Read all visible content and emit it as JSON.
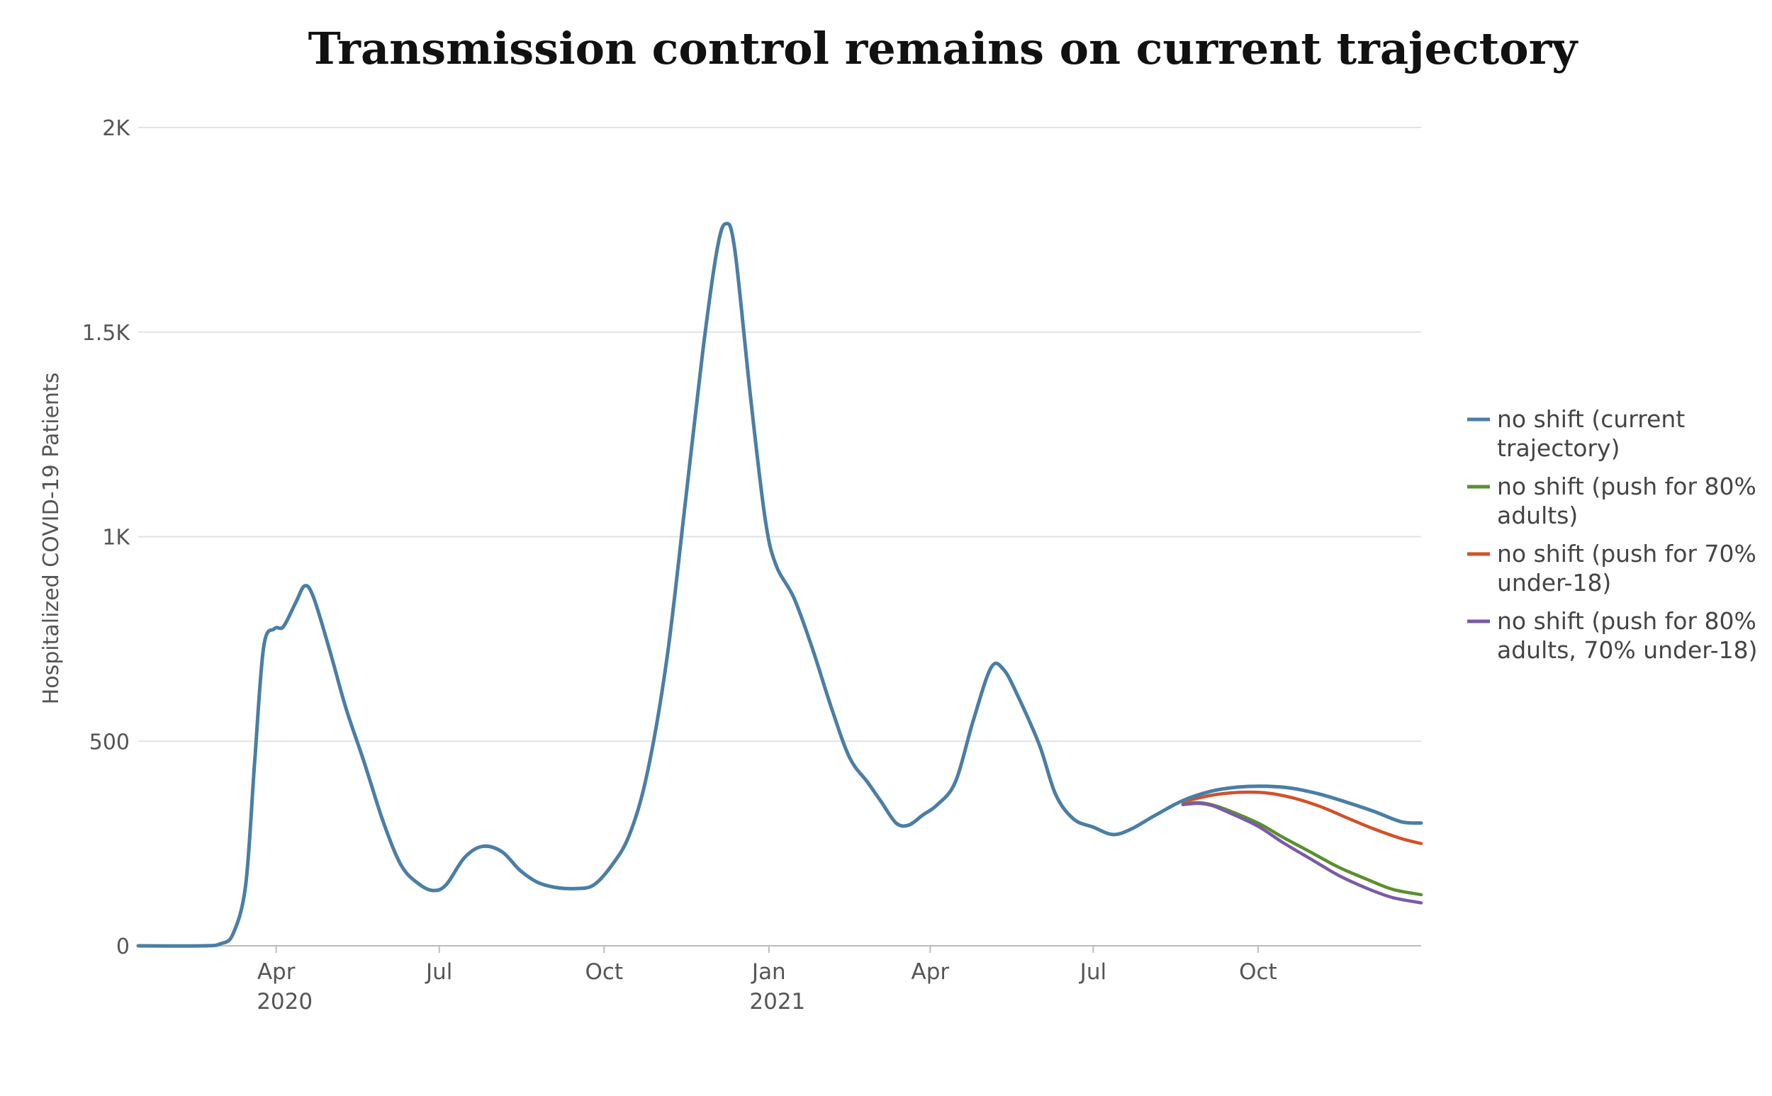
{
  "chart_data": {
    "type": "line",
    "title": "Transmission control remains on current trajectory",
    "ylabel": "Hospitalized COVID-19 Patients",
    "xlabel": "",
    "ylim": [
      0,
      2000
    ],
    "xlim": [
      "2020-01-15",
      "2021-12-31"
    ],
    "y_ticks": [
      {
        "value": 0,
        "label": "0"
      },
      {
        "value": 500,
        "label": "500"
      },
      {
        "value": 1000,
        "label": "1K"
      },
      {
        "value": 1500,
        "label": "1.5K"
      },
      {
        "value": 2000,
        "label": "2K"
      }
    ],
    "x_ticks": [
      {
        "date": "2020-04-01",
        "label": "Apr",
        "year": "2020"
      },
      {
        "date": "2020-07-01",
        "label": "Jul",
        "year": ""
      },
      {
        "date": "2020-10-01",
        "label": "Oct",
        "year": ""
      },
      {
        "date": "2021-01-01",
        "label": "Jan",
        "year": "2021"
      },
      {
        "date": "2021-04-01",
        "label": "Apr",
        "year": ""
      },
      {
        "date": "2021-07-01",
        "label": "Jul",
        "year": ""
      },
      {
        "date": "2021-10-01",
        "label": "Oct",
        "year": ""
      }
    ],
    "grid": true,
    "legend_position": "right",
    "series": [
      {
        "name": "no shift (current trajectory)",
        "color": "#4a7ea5",
        "points": [
          [
            "2020-01-15",
            0
          ],
          [
            "2020-02-20",
            0
          ],
          [
            "2020-03-01",
            5
          ],
          [
            "2020-03-08",
            30
          ],
          [
            "2020-03-15",
            150
          ],
          [
            "2020-03-20",
            450
          ],
          [
            "2020-03-25",
            730
          ],
          [
            "2020-03-31",
            775
          ],
          [
            "2020-04-05",
            780
          ],
          [
            "2020-04-12",
            840
          ],
          [
            "2020-04-17",
            880
          ],
          [
            "2020-04-22",
            850
          ],
          [
            "2020-05-01",
            720
          ],
          [
            "2020-05-10",
            580
          ],
          [
            "2020-05-20",
            450
          ],
          [
            "2020-05-31",
            300
          ],
          [
            "2020-06-10",
            195
          ],
          [
            "2020-06-20",
            150
          ],
          [
            "2020-06-28",
            135
          ],
          [
            "2020-07-05",
            150
          ],
          [
            "2020-07-15",
            215
          ],
          [
            "2020-07-25",
            243
          ],
          [
            "2020-08-05",
            230
          ],
          [
            "2020-08-15",
            185
          ],
          [
            "2020-08-25",
            155
          ],
          [
            "2020-09-05",
            142
          ],
          [
            "2020-09-15",
            140
          ],
          [
            "2020-09-25",
            148
          ],
          [
            "2020-10-05",
            195
          ],
          [
            "2020-10-15",
            270
          ],
          [
            "2020-10-25",
            420
          ],
          [
            "2020-11-05",
            700
          ],
          [
            "2020-11-15",
            1070
          ],
          [
            "2020-11-25",
            1450
          ],
          [
            "2020-12-03",
            1700
          ],
          [
            "2020-12-08",
            1765
          ],
          [
            "2020-12-13",
            1700
          ],
          [
            "2020-12-22",
            1330
          ],
          [
            "2020-12-30",
            1040
          ],
          [
            "2021-01-05",
            930
          ],
          [
            "2021-01-15",
            850
          ],
          [
            "2021-01-25",
            730
          ],
          [
            "2021-02-05",
            580
          ],
          [
            "2021-02-15",
            460
          ],
          [
            "2021-02-25",
            400
          ],
          [
            "2021-03-05",
            350
          ],
          [
            "2021-03-13",
            300
          ],
          [
            "2021-03-20",
            295
          ],
          [
            "2021-03-28",
            320
          ],
          [
            "2021-04-05",
            345
          ],
          [
            "2021-04-15",
            400
          ],
          [
            "2021-04-25",
            550
          ],
          [
            "2021-05-05",
            680
          ],
          [
            "2021-05-12",
            675
          ],
          [
            "2021-05-20",
            610
          ],
          [
            "2021-06-01",
            490
          ],
          [
            "2021-06-10",
            370
          ],
          [
            "2021-06-20",
            310
          ],
          [
            "2021-07-01",
            290
          ],
          [
            "2021-07-12",
            272
          ],
          [
            "2021-07-22",
            285
          ],
          [
            "2021-08-05",
            320
          ],
          [
            "2021-08-20",
            355
          ],
          [
            "2021-09-05",
            378
          ],
          [
            "2021-09-20",
            388
          ],
          [
            "2021-10-05",
            390
          ],
          [
            "2021-10-20",
            385
          ],
          [
            "2021-11-05",
            370
          ],
          [
            "2021-11-20",
            350
          ],
          [
            "2021-12-05",
            328
          ],
          [
            "2021-12-20",
            303
          ],
          [
            "2021-12-31",
            300
          ]
        ]
      },
      {
        "name": "no shift (push for 80% adults)",
        "color": "#5a8f2e",
        "points": [
          [
            "2021-08-20",
            346
          ],
          [
            "2021-08-28",
            350
          ],
          [
            "2021-09-05",
            345
          ],
          [
            "2021-09-15",
            330
          ],
          [
            "2021-10-01",
            300
          ],
          [
            "2021-10-15",
            265
          ],
          [
            "2021-11-01",
            225
          ],
          [
            "2021-11-15",
            192
          ],
          [
            "2021-12-01",
            162
          ],
          [
            "2021-12-15",
            138
          ],
          [
            "2021-12-31",
            125
          ]
        ]
      },
      {
        "name": "no shift (push for 70% under-18)",
        "color": "#d2512b",
        "points": [
          [
            "2021-08-20",
            352
          ],
          [
            "2021-09-05",
            368
          ],
          [
            "2021-09-20",
            375
          ],
          [
            "2021-10-05",
            374
          ],
          [
            "2021-10-20",
            362
          ],
          [
            "2021-11-05",
            340
          ],
          [
            "2021-11-20",
            312
          ],
          [
            "2021-12-05",
            285
          ],
          [
            "2021-12-20",
            262
          ],
          [
            "2021-12-31",
            250
          ]
        ]
      },
      {
        "name": "no shift (push for 80% adults, 70% under-18)",
        "color": "#7a5ba8",
        "points": [
          [
            "2021-08-20",
            345
          ],
          [
            "2021-08-28",
            348
          ],
          [
            "2021-09-05",
            343
          ],
          [
            "2021-09-15",
            325
          ],
          [
            "2021-10-01",
            292
          ],
          [
            "2021-10-15",
            252
          ],
          [
            "2021-11-01",
            208
          ],
          [
            "2021-11-15",
            172
          ],
          [
            "2021-12-01",
            140
          ],
          [
            "2021-12-15",
            118
          ],
          [
            "2021-12-31",
            105
          ]
        ]
      }
    ],
    "legend": [
      {
        "line1": "no shift (current",
        "line2": "trajectory)",
        "color": "#4a7ea5"
      },
      {
        "line1": "no shift (push for 80%",
        "line2": "adults)",
        "color": "#5a8f2e"
      },
      {
        "line1": "no shift (push for 70%",
        "line2": "under-18)",
        "color": "#d2512b"
      },
      {
        "line1": "no shift (push for 80%",
        "line2": "adults, 70% under-18)",
        "color": "#7a5ba8"
      }
    ]
  }
}
